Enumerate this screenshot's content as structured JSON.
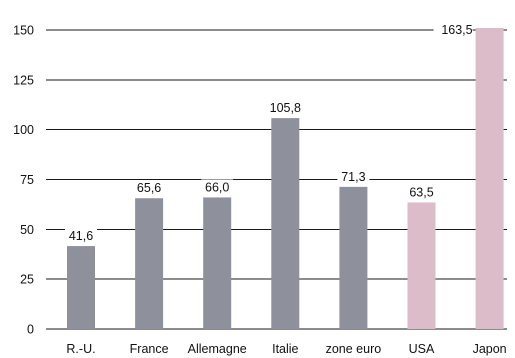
{
  "chart_data": {
    "type": "bar",
    "title": "",
    "xlabel": "",
    "ylabel": "",
    "ylim": [
      0,
      150
    ],
    "yticks": [
      0,
      25,
      50,
      75,
      100,
      125,
      150
    ],
    "grid": true,
    "legend": "none",
    "categories": [
      "R.-U.",
      "France",
      "Allemagne",
      "Italie",
      "zone euro",
      "USA",
      "Japon"
    ],
    "values": [
      41.6,
      65.6,
      66.0,
      105.8,
      71.3,
      63.5,
      163.5
    ],
    "value_labels": [
      "41,6",
      "65,6",
      "66,0",
      "105,8",
      "71,3",
      "63,5",
      "163,5"
    ],
    "bar_colors": [
      "#8e919b",
      "#8e919b",
      "#8e919b",
      "#8e919b",
      "#8e919b",
      "#dcbcc8",
      "#dcbcc8"
    ],
    "truncated_top": [
      false,
      false,
      false,
      false,
      false,
      false,
      true
    ]
  }
}
